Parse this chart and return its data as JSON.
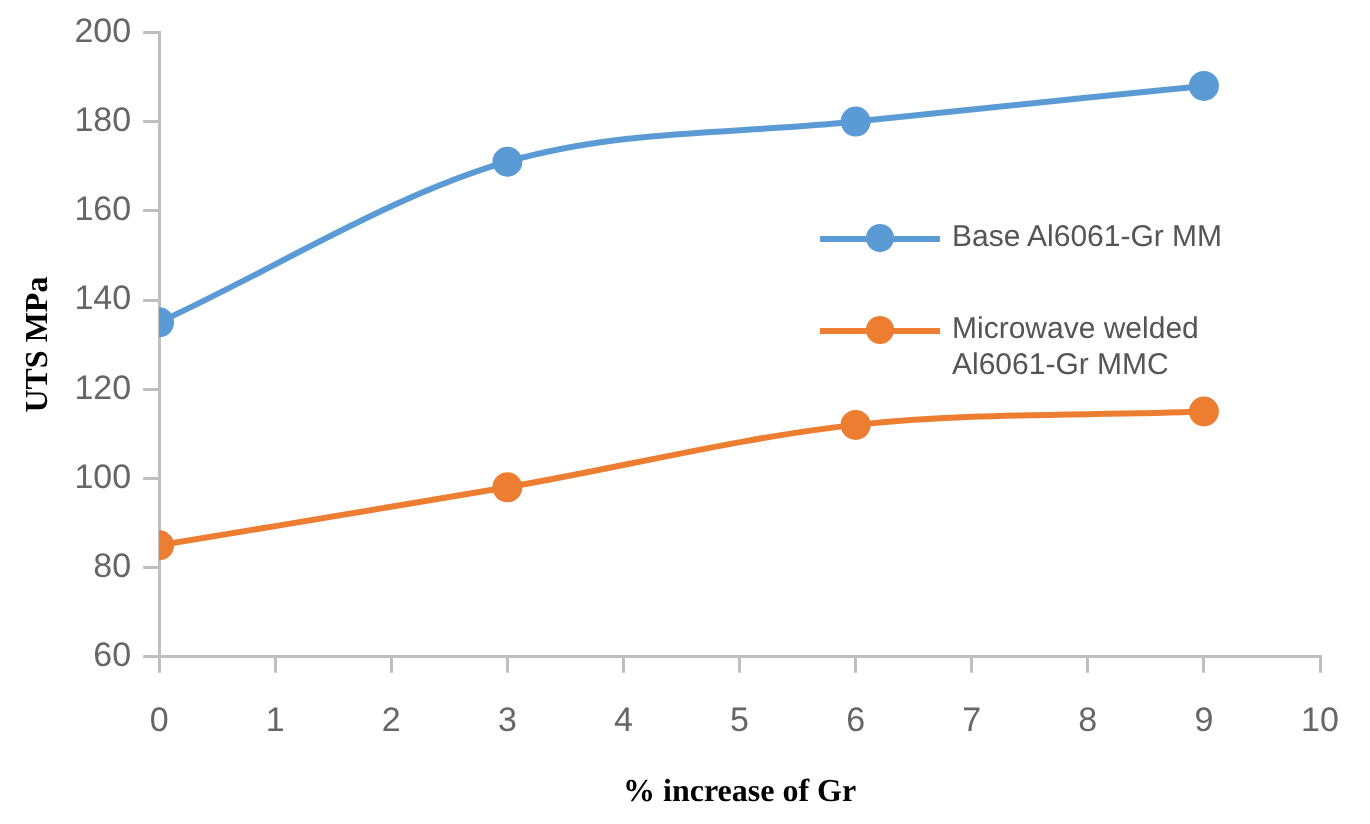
{
  "chart_data": {
    "type": "line",
    "xlabel": "% increase of Gr",
    "ylabel": "UTS MPa",
    "xlim": [
      0,
      10
    ],
    "xticks": [
      0,
      1,
      2,
      3,
      4,
      5,
      6,
      7,
      8,
      9,
      10
    ],
    "ylim": [
      60,
      200
    ],
    "yticks": [
      60,
      80,
      100,
      120,
      140,
      160,
      180,
      200
    ],
    "x": [
      0,
      3,
      6,
      9
    ],
    "series": [
      {
        "name": "Base Al6061-Gr MM",
        "color": "#5b9bd5",
        "values": [
          135,
          171,
          180,
          188
        ]
      },
      {
        "name": "Microwave welded Al6061-Gr MMC",
        "color": "#ed7d31",
        "values": [
          85,
          98,
          112,
          115
        ]
      }
    ],
    "legend": "right",
    "marker": "circle",
    "line_style": "solid"
  }
}
